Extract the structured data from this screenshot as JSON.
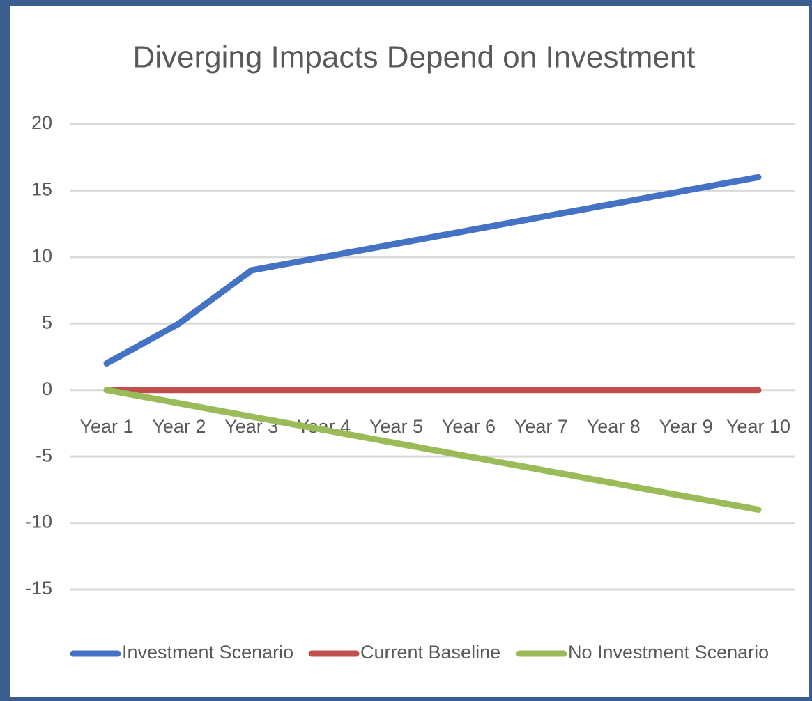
{
  "chart_data": {
    "type": "line",
    "title": "Diverging Impacts Depend on Investment",
    "categories": [
      "Year 1",
      "Year 2",
      "Year 3",
      "Year 4",
      "Year 5",
      "Year 6",
      "Year 7",
      "Year 8",
      "Year 9",
      "Year 10"
    ],
    "series": [
      {
        "name": "Investment Scenario",
        "color": "#4472c4",
        "values": [
          2,
          5,
          9,
          10,
          11,
          12,
          13,
          14,
          15,
          16
        ]
      },
      {
        "name": "Current Baseline",
        "color": "#c0504d",
        "values": [
          0,
          0,
          0,
          0,
          0,
          0,
          0,
          0,
          0,
          0
        ]
      },
      {
        "name": "No Investment Scenario",
        "color": "#9bbb59",
        "values": [
          0,
          -1,
          -2,
          -3,
          -4,
          -5,
          -6,
          -7,
          -8,
          -9
        ]
      }
    ],
    "ylim": [
      -15,
      20
    ],
    "yticks": [
      -15,
      -10,
      -5,
      0,
      5,
      10,
      15,
      20
    ],
    "grid": true,
    "legend": "bottom"
  }
}
